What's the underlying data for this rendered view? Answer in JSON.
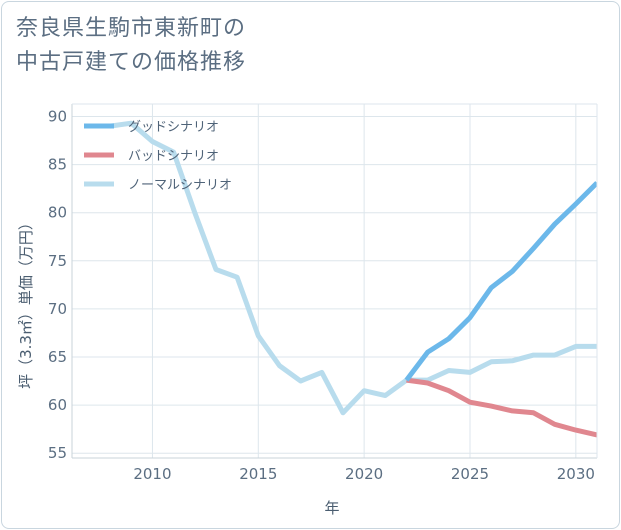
{
  "title_lines": [
    "奈良県生駒市東新町の",
    "中古戸建ての価格推移"
  ],
  "chart_data": {
    "type": "line",
    "title": "奈良県生駒市東新町の中古戸建ての価格推移",
    "xlabel": "年",
    "ylabel": "坪（3.3㎡）単価（万円）",
    "xlim": [
      2006.2,
      2031.0
    ],
    "ylim": [
      54.5,
      91.3
    ],
    "xticks": [
      2010,
      2015,
      2020,
      2025,
      2030
    ],
    "yticks": [
      55,
      60,
      65,
      70,
      75,
      80,
      85,
      90
    ],
    "grid": true,
    "legend_position": "top-left",
    "series": [
      {
        "name": "グッドシナリオ",
        "color": "#6cb8ea",
        "x": [
          2022,
          2023,
          2024,
          2025,
          2026,
          2027,
          2028,
          2029,
          2030,
          2031
        ],
        "y": [
          62.6,
          65.5,
          66.9,
          69.1,
          72.2,
          73.9,
          76.3,
          78.8,
          80.9,
          83.1
        ]
      },
      {
        "name": "バッドシナリオ",
        "color": "#e0878f",
        "x": [
          2022,
          2023,
          2024,
          2025,
          2026,
          2027,
          2028,
          2029,
          2030,
          2031
        ],
        "y": [
          62.6,
          62.3,
          61.5,
          60.3,
          59.9,
          59.4,
          59.2,
          58.0,
          57.4,
          56.9
        ]
      },
      {
        "name": "ノーマルシナリオ",
        "color": "#b8dced",
        "x": [
          2008,
          2009,
          2010,
          2011,
          2012,
          2013,
          2014,
          2015,
          2016,
          2017,
          2018,
          2019,
          2020,
          2021,
          2022,
          2023,
          2024,
          2025,
          2026,
          2027,
          2028,
          2029,
          2030,
          2031
        ],
        "y": [
          89.0,
          89.3,
          87.4,
          86.3,
          80.0,
          74.1,
          73.3,
          67.2,
          64.1,
          62.5,
          63.4,
          59.2,
          61.5,
          61.0,
          62.6,
          62.6,
          63.6,
          63.4,
          64.5,
          64.6,
          65.2,
          65.2,
          66.1,
          66.1
        ]
      }
    ]
  }
}
